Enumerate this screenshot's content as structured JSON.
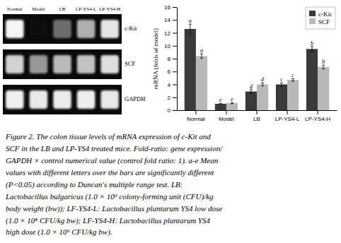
{
  "chart_data": [
    {
      "type": "bar",
      "categories": [
        "Normal",
        "Model",
        "LB",
        "LP-YS4-L",
        "LP-YS4-H"
      ],
      "series": [
        {
          "name": "c-Kit",
          "color": "#3a3a3a",
          "values": [
            12.6,
            1.0,
            2.9,
            4.0,
            9.5
          ],
          "errors": [
            0.75,
            0.07,
            0.3,
            0.25,
            0.4
          ],
          "annotations": [
            "a",
            "e",
            "d",
            "c",
            "b"
          ]
        },
        {
          "name": "SCF",
          "color": "#b8b8b8",
          "values": [
            8.4,
            1.1,
            4.0,
            4.7,
            6.7
          ],
          "errors": [
            0.35,
            0.08,
            0.22,
            0.2,
            0.3
          ],
          "annotations": [
            "a",
            "e",
            "d",
            "c",
            "b"
          ]
        }
      ],
      "ylabel": "mRNA (folds of model)",
      "ylim": [
        0,
        16.0
      ],
      "yticks": [
        0,
        2,
        4,
        6,
        8,
        10,
        12,
        14,
        16
      ],
      "legend": "upper right",
      "grid": false
    },
    {
      "type": "heatmap",
      "categories": [
        "Normal",
        "Model",
        "LB",
        "LP-YS4-L",
        "LP-YS4-H"
      ],
      "series": [
        {
          "name": "c-Kit",
          "values": [
            0.92,
            0.04,
            0.35,
            0.58,
            0.82
          ]
        },
        {
          "name": "SCF",
          "values": [
            0.72,
            0.5,
            0.62,
            0.65,
            0.78
          ]
        },
        {
          "name": "GAPDH",
          "values": [
            0.88,
            0.84,
            0.85,
            0.87,
            0.84
          ]
        }
      ]
    }
  ],
  "caption": [
    "Figure 2.  The colon tissue levels of mRNA expression of c-Kit and",
    "SCF in the LB and LP-YS4 treated mice. Fold-ratio: gene expression/",
    "GAPDH × control numerical value (control fold ratio: 1). a-e Mean",
    "values with different letters over the bars are significantly different",
    "(P<0.05)  according  to  Duncan's  multiple  range  test.   LB:",
    "Lactobacillus bulgaricus (1.0 × 10⁹ colony-forming unit (CFU)/kg",
    "body weight (bw)); LF-YS4-L: Lactobacillus plantarum YS4 low dose",
    "(1.0 × 10⁸ CFU/kg bw); LF-YS4-H: Lactobacillus plantarum YS4",
    "high dose (1.0 × 10⁹ CFU/kg bw)."
  ]
}
